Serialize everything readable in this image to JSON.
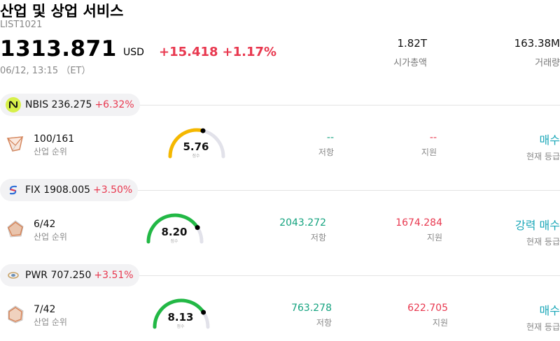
{
  "header": {
    "title": "산업 및 상업 서비스",
    "ticker": "LIST1021",
    "price": "1313.871",
    "currency": "USD",
    "change_abs": "+15.418",
    "change_pct": "+1.17%",
    "datetime": "06/12, 13:15 （ET）",
    "market_cap": "1.82T",
    "market_cap_label": "시가총액",
    "volume": "163.38M",
    "volume_label": "거래량"
  },
  "stocks": [
    {
      "symbol_price": "NBIS 236.275",
      "change": "+6.32%",
      "rank": "100/161",
      "rank_label": "산업 순위",
      "score": "5.76",
      "score_label": "점수",
      "score_fraction": 0.576,
      "gauge_color": "#f5b800",
      "resistance": "--",
      "resistance_label": "저항",
      "support": "--",
      "support_label": "지원",
      "rating": "매수",
      "rating_label": "현재 등급",
      "logo_icon": "nebius-logo-icon",
      "logo_color": "#d7f04a"
    },
    {
      "symbol_price": "FIX 1908.005",
      "change": "+3.50%",
      "rank": "6/42",
      "rank_label": "산업 순위",
      "score": "8.20",
      "score_label": "점수",
      "score_fraction": 0.82,
      "gauge_color": "#22b845",
      "resistance": "2043.272",
      "resistance_label": "저항",
      "support": "1674.284",
      "support_label": "지원",
      "rating": "강력 매수",
      "rating_label": "현재 등급",
      "logo_icon": "comfort-systems-logo-icon",
      "logo_color": "#2e6fd8"
    },
    {
      "symbol_price": "PWR 707.250",
      "change": "+3.51%",
      "rank": "7/42",
      "rank_label": "산업 순위",
      "score": "8.13",
      "score_label": "점수",
      "score_fraction": 0.813,
      "gauge_color": "#22b845",
      "resistance": "763.278",
      "resistance_label": "저항",
      "support": "622.705",
      "support_label": "지원",
      "rating": "매수",
      "rating_label": "현재 등급",
      "logo_icon": "quanta-logo-icon",
      "logo_color": "#c8a46a"
    }
  ]
}
